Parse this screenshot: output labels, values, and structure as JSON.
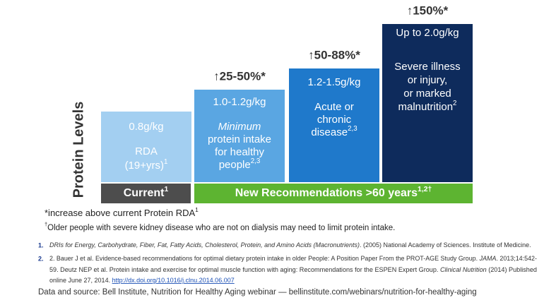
{
  "axis_label": "Protein Levels",
  "tiers": [
    {
      "color": "#a3cff1",
      "lines": [
        [
          {
            "text": "0.8g/kg"
          }
        ],
        [
          {
            "text": "RDA"
          }
        ],
        [
          {
            "text": "(19+yrs)"
          },
          {
            "text": "1",
            "style": "sup"
          }
        ]
      ]
    },
    {
      "color": "#5aa6e2",
      "increase": "↑25-50%*",
      "lines": [
        [
          {
            "text": "1.0-1.2g/kg"
          }
        ],
        [
          {
            "text": "Minimum",
            "style": "italic"
          }
        ],
        [
          {
            "text": "protein intake"
          }
        ],
        [
          {
            "text": "for healthy"
          }
        ],
        [
          {
            "text": "people"
          },
          {
            "text": "2,3",
            "style": "sup"
          }
        ]
      ]
    },
    {
      "color": "#1f79cb",
      "increase": "↑50-88%*",
      "lines": [
        [
          {
            "text": "1.2-1.5g/kg"
          }
        ],
        [
          {
            "text": "Acute or"
          }
        ],
        [
          {
            "text": "chronic"
          }
        ],
        [
          {
            "text": "disease"
          },
          {
            "text": "2,3",
            "style": "sup"
          }
        ]
      ]
    },
    {
      "color": "#0e2b5c",
      "increase": "↑150%*",
      "lines": [
        [
          {
            "text": "Up to 2.0g/kg"
          }
        ],
        [
          {
            "text": "Severe illness"
          }
        ],
        [
          {
            "text": "or injury,"
          }
        ],
        [
          {
            "text": "or marked"
          }
        ],
        [
          {
            "text": "malnutrition"
          },
          {
            "text": "2",
            "style": "sup"
          }
        ]
      ]
    }
  ],
  "bands": [
    {
      "color": "#4d4d4d",
      "segments": [
        {
          "text": "Current"
        },
        {
          "text": "1",
          "style": "sup"
        }
      ]
    },
    {
      "color": "#5db431",
      "segments": [
        {
          "text": "New Recommendations >60 years"
        },
        {
          "text": "1,2†",
          "style": "sup"
        }
      ]
    }
  ],
  "footnotes": [
    [
      {
        "text": "*increase above current Protein RDA"
      },
      {
        "text": "1",
        "style": "sup"
      }
    ],
    [
      {
        "text": "†",
        "style": "sup"
      },
      {
        "text": "Older people with severe kidney disease who are not on dialysis may need to limit protein intake."
      }
    ]
  ],
  "references": [
    {
      "number": "1.",
      "lines": [
        [
          {
            "text": "DRIs for Energy, Carbohydrate, Fiber, Fat, Fatty Acids, Cholesterol, Protein, and Amino Acids (Macronutrients)",
            "style": "italic"
          },
          {
            "text": ". (2005) National Academy of Sciences. Institute of Medicine."
          }
        ]
      ]
    },
    {
      "number": "2.",
      "lines": [
        [
          {
            "text": "2.  Bauer J et al. Evidence-based recommendations for optimal dietary protein intake in older People: A Position Paper From the PROT-AGE Study Group. "
          },
          {
            "text": "JAMA",
            "style": "italic"
          },
          {
            "text": ". 2013;14:542-"
          }
        ],
        [
          {
            "text": "59.  Deutz NEP et al. Protein intake and exercise for optimal muscle function with aging: Recommendations for the ESPEN Expert Group. "
          },
          {
            "text": "Clinical Nutrition",
            "style": "italic"
          },
          {
            "text": " (2014) Published"
          }
        ],
        [
          {
            "text": "online June 27, 2014. "
          },
          {
            "text": "http://dx.doi.org/10.1016/j.clnu.2014.06.007",
            "style": "link"
          }
        ]
      ]
    }
  ],
  "source": "Data and source: Bell Institute, Nutrition for Healthy Aging webinar — bellinstitute.com/webinars/nutrition-for-healthy-aging"
}
